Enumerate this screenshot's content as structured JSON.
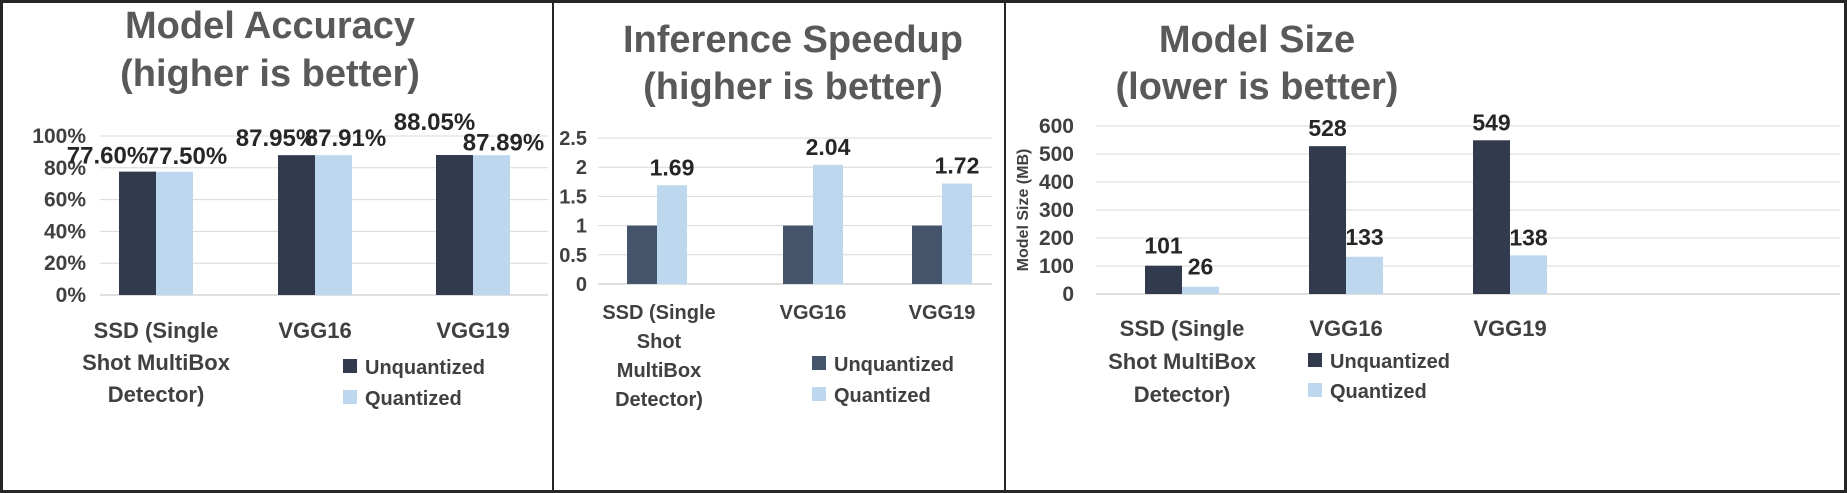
{
  "chart_data": [
    {
      "type": "bar",
      "title": "Model Accuracy",
      "subtitle": "(higher is better)",
      "categories": [
        [
          "SSD (Single",
          "Shot MultiBox",
          "Detector)"
        ],
        [
          "VGG16"
        ],
        [
          "VGG19"
        ]
      ],
      "series": [
        {
          "name": "Unquantized",
          "values": [
            77.6,
            87.95,
            88.05
          ],
          "labels": [
            "77.60%",
            "87.95%",
            "88.05%"
          ]
        },
        {
          "name": "Quantized",
          "values": [
            77.5,
            87.91,
            87.89
          ],
          "labels": [
            "77.50%",
            "87.91%",
            "87.89%"
          ]
        }
      ],
      "ylabel": "",
      "ylim": [
        0,
        100
      ],
      "yticks": [
        "0%",
        "20%",
        "40%",
        "60%",
        "80%",
        "100%"
      ],
      "grid": true,
      "legend": "bottom-right"
    },
    {
      "type": "bar",
      "title": "Inference Speedup",
      "subtitle": "(higher is better)",
      "categories": [
        [
          "SSD (Single",
          "Shot",
          "MultiBox",
          "Detector)"
        ],
        [
          "VGG16"
        ],
        [
          "VGG19"
        ]
      ],
      "series": [
        {
          "name": "Unquantized",
          "values": [
            1,
            1,
            1
          ],
          "labels": [
            "",
            "",
            ""
          ]
        },
        {
          "name": "Quantized",
          "values": [
            1.69,
            2.04,
            1.72
          ],
          "labels": [
            "1.69",
            "2.04",
            "1.72"
          ]
        }
      ],
      "ylabel": "",
      "ylim": [
        0,
        2.5
      ],
      "yticks": [
        "0",
        "0.5",
        "1",
        "1.5",
        "2",
        "2.5"
      ],
      "grid": true,
      "legend": "bottom-right"
    },
    {
      "type": "bar",
      "title": "Model Size",
      "subtitle": "(lower is better)",
      "categories": [
        [
          "SSD (Single",
          "Shot MultiBox",
          "Detector)"
        ],
        [
          "VGG16"
        ],
        [
          "VGG19"
        ]
      ],
      "series": [
        {
          "name": "Unquantized",
          "values": [
            101,
            528,
            549
          ],
          "labels": [
            "101",
            "528",
            "549"
          ]
        },
        {
          "name": "Quantized",
          "values": [
            26,
            133,
            138
          ],
          "labels": [
            "26",
            "133",
            "138"
          ]
        }
      ],
      "ylabel": "Model Size (MB)",
      "ylim": [
        0,
        600
      ],
      "yticks": [
        "0",
        "100",
        "200",
        "300",
        "400",
        "500",
        "600"
      ],
      "grid": true,
      "legend": "bottom-right"
    }
  ],
  "colors": {
    "unquantized_panels_1_3": "#323b4d",
    "unquantized_panel_2": "#44546a",
    "quantized": "#bdd7ee",
    "panel_border": "#262626"
  }
}
